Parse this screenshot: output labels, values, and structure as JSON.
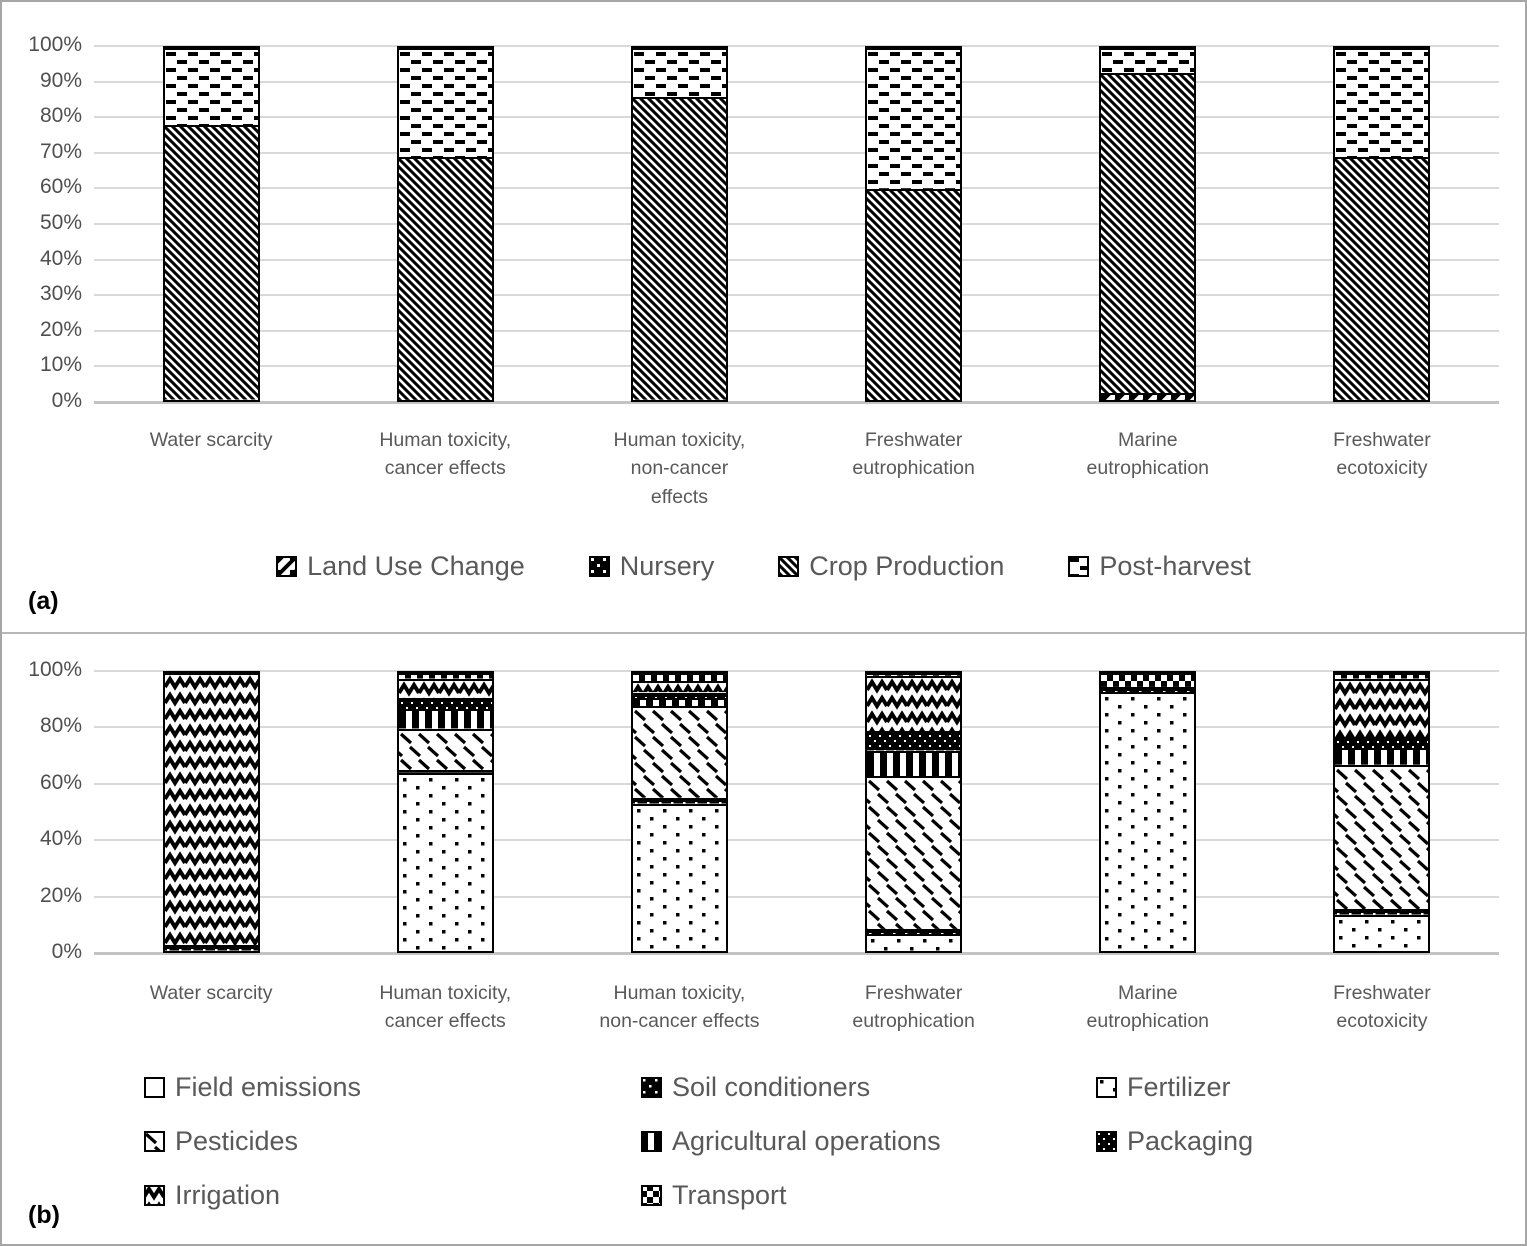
{
  "figure": {
    "background": "#ffffff",
    "border_color": "#a6a6a6",
    "text_color": "#595959",
    "gridline_color": "#d9d9d9",
    "bar_outline_color": "#000000"
  },
  "chart_data": [
    {
      "id": "a",
      "panel_label": "(a)",
      "type": "bar",
      "subtype": "stacked-100-percent",
      "grid": true,
      "ylim": [
        0,
        100
      ],
      "y_tick_step": 10,
      "y_tick_labels": [
        "100%",
        "90%",
        "80%",
        "70%",
        "60%",
        "50%",
        "40%",
        "30%",
        "20%",
        "10%",
        "0%"
      ],
      "legend_position": "bottom",
      "categories": [
        "Water scarcity",
        "Human toxicity, cancer effects",
        "Human toxicity, non-cancer effects",
        "Freshwater eutrophication",
        "Marine eutrophication",
        "Freshwater ecotoxicity"
      ],
      "category_label_lines": [
        [
          "Water scarcity"
        ],
        [
          "Human toxicity,",
          "cancer effects"
        ],
        [
          "Human toxicity,",
          "non-cancer",
          "effects"
        ],
        [
          "Freshwater",
          "eutrophication"
        ],
        [
          "Marine",
          "eutrophication"
        ],
        [
          "Freshwater",
          "ecotoxicity"
        ]
      ],
      "series": [
        {
          "name": "Land Use Change",
          "pattern": "luc",
          "values": [
            0,
            0,
            0,
            0,
            2,
            0
          ]
        },
        {
          "name": "Nursery",
          "pattern": "nursery",
          "values": [
            0,
            0,
            0,
            0,
            0,
            0
          ]
        },
        {
          "name": "Crop Production",
          "pattern": "crop",
          "values": [
            78,
            69,
            86,
            60,
            91,
            69
          ]
        },
        {
          "name": "Post-harvest",
          "pattern": "post",
          "values": [
            22,
            31,
            14,
            40,
            7,
            31
          ]
        }
      ],
      "legend_order": [
        "Land Use Change",
        "Nursery",
        "Crop Production",
        "Post-harvest"
      ]
    },
    {
      "id": "b",
      "panel_label": "(b)",
      "type": "bar",
      "subtype": "stacked-100-percent",
      "grid": true,
      "ylim": [
        0,
        100
      ],
      "y_tick_step": 20,
      "y_tick_labels": [
        "100%",
        "80%",
        "60%",
        "40%",
        "20%",
        "0%"
      ],
      "legend_position": "bottom",
      "categories": [
        "Water scarcity",
        "Human toxicity, cancer effects",
        "Human toxicity, non-cancer effects",
        "Freshwater eutrophication",
        "Marine eutrophication",
        "Freshwater ecotoxicity"
      ],
      "category_label_lines": [
        [
          "Water scarcity"
        ],
        [
          "Human toxicity,",
          "cancer effects"
        ],
        [
          "Human toxicity,",
          "non-cancer effects"
        ],
        [
          "Freshwater",
          "eutrophication"
        ],
        [
          "Marine",
          "eutrophication"
        ],
        [
          "Freshwater",
          "ecotoxicity"
        ]
      ],
      "series": [
        {
          "name": "Field emissions",
          "pattern": "field",
          "values": [
            0,
            0,
            0,
            0,
            0,
            0
          ]
        },
        {
          "name": "Fertilizer",
          "pattern": "fert",
          "values": [
            0,
            64,
            53,
            6,
            93,
            13
          ]
        },
        {
          "name": "Soil conditioners",
          "pattern": "soil",
          "values": [
            2,
            1,
            2,
            2,
            2,
            2
          ]
        },
        {
          "name": "Pesticides",
          "pattern": "pest",
          "values": [
            0,
            15,
            33,
            55,
            0,
            52
          ]
        },
        {
          "name": "Agricultural operations",
          "pattern": "agops",
          "values": [
            0,
            7,
            3,
            9,
            0,
            6
          ]
        },
        {
          "name": "Packaging",
          "pattern": "pack",
          "values": [
            0,
            4,
            2,
            7,
            0,
            4
          ]
        },
        {
          "name": "Irrigation",
          "pattern": "irr",
          "values": [
            98,
            7,
            4,
            20,
            0,
            21
          ]
        },
        {
          "name": "Transport",
          "pattern": "trans",
          "values": [
            0,
            2,
            3,
            1,
            5,
            2
          ]
        }
      ],
      "legend_order": [
        "Field emissions",
        "Soil conditioners",
        "Fertilizer",
        "Pesticides",
        "Agricultural operations",
        "Packaging",
        "Irrigation",
        "Transport"
      ]
    }
  ]
}
